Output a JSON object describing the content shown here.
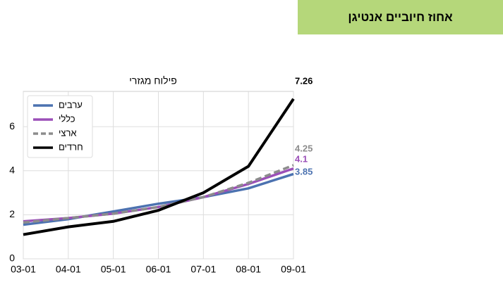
{
  "header": {
    "title": "אחוז חיוביים אנטיגן"
  },
  "chart_data": {
    "type": "line",
    "title": "פילוח מגזרי",
    "categories": [
      "03-01",
      "04-01",
      "05-01",
      "06-01",
      "07-01",
      "08-01",
      "09-01"
    ],
    "series": [
      {
        "name": "ערבים",
        "color": "#4c72b0",
        "dash": false,
        "values": [
          1.55,
          1.8,
          2.15,
          2.5,
          2.8,
          3.2,
          3.85
        ]
      },
      {
        "name": "כללי",
        "color": "#9b4fb8",
        "dash": false,
        "values": [
          1.7,
          1.85,
          2.05,
          2.35,
          2.8,
          3.4,
          4.1
        ]
      },
      {
        "name": "ארצי",
        "color": "#8c8c8c",
        "dash": true,
        "values": [
          1.65,
          1.85,
          2.05,
          2.35,
          2.8,
          3.45,
          4.25
        ]
      },
      {
        "name": "חרדים",
        "color": "#000000",
        "dash": false,
        "values": [
          1.1,
          1.45,
          1.7,
          2.2,
          3.0,
          4.2,
          7.26
        ]
      }
    ],
    "ylim": [
      0,
      7.6
    ],
    "yticks": [
      0,
      2,
      4,
      6
    ],
    "grid": true,
    "legend": "upper-left"
  }
}
